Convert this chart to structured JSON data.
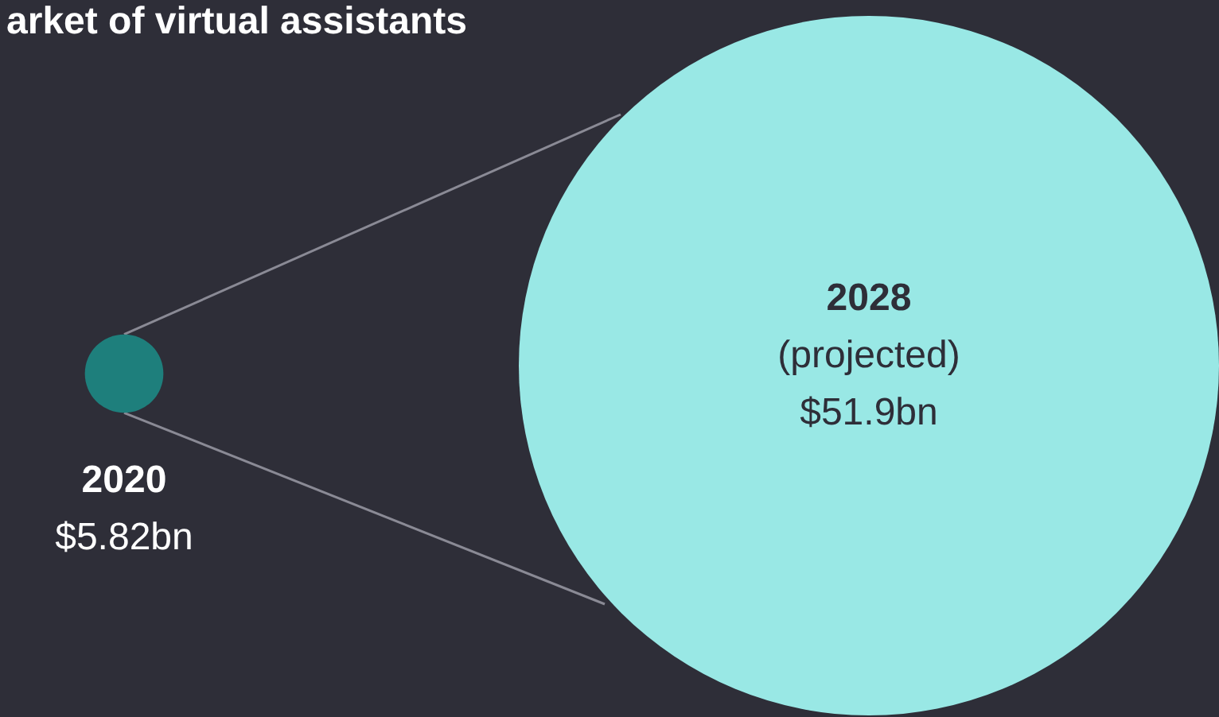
{
  "chart_data": {
    "type": "other",
    "title": "arket of virtual assistants",
    "categories": [
      "2020",
      "2028"
    ],
    "values": [
      5.82,
      51.9
    ],
    "value_labels": [
      "$5.82bn",
      "$51.9bn"
    ],
    "colors": [
      "#1e7f7c",
      "#99e8e5"
    ],
    "annotations": [
      "(projected)"
    ]
  }
}
